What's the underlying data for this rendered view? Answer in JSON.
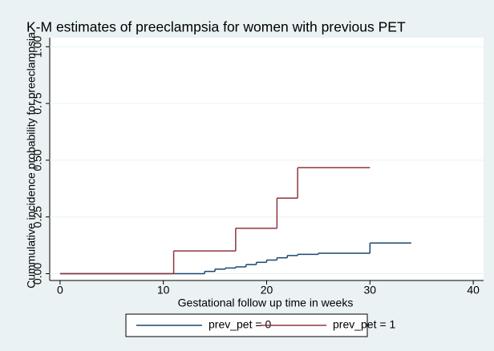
{
  "chart_data": {
    "type": "step",
    "title": "K-M estimates of preeclampsia for women with previous PET",
    "x_label": "Gestational follow up time in weeks",
    "y_label": "Cummulative incidence probability for preeclampsia",
    "xlim": [
      -1,
      41
    ],
    "ylim": [
      -0.03,
      1.04
    ],
    "xticks": [
      0,
      10,
      20,
      30,
      40
    ],
    "yticks": [
      {
        "value": 0,
        "label": "0.00"
      },
      {
        "value": 0.25,
        "label": "0.25"
      },
      {
        "value": 0.5,
        "label": "0.50"
      },
      {
        "value": 0.75,
        "label": "0.75"
      },
      {
        "value": 1,
        "label": "1.00"
      }
    ],
    "grid": true,
    "legend": "bottom",
    "series": [
      {
        "name": "prev_pet = 0",
        "color": "#1a476f",
        "x": [
          0,
          14,
          15,
          16,
          17,
          18,
          19,
          20,
          21,
          22,
          23,
          25,
          30,
          34
        ],
        "values": [
          0,
          0.01,
          0.02,
          0.025,
          0.03,
          0.04,
          0.05,
          0.06,
          0.07,
          0.08,
          0.085,
          0.09,
          0.135,
          0.135
        ]
      },
      {
        "name": "prev_pet = 1",
        "color": "#90353b",
        "x": [
          0,
          11,
          17,
          21,
          23,
          30
        ],
        "values": [
          0,
          0.1,
          0.2,
          0.333,
          0.467,
          0.467
        ]
      }
    ]
  }
}
